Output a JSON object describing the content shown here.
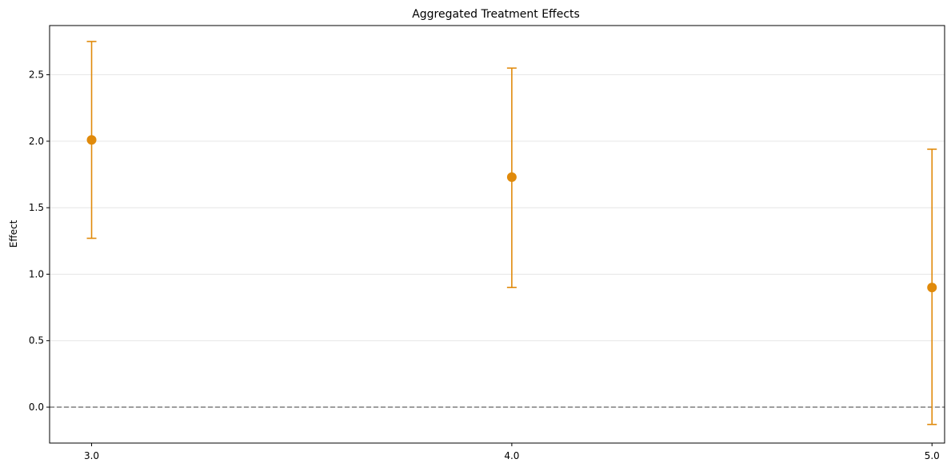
{
  "chart_data": {
    "type": "scatter",
    "title": "Aggregated Treatment Effects",
    "xlabel": "",
    "ylabel": "Effect",
    "x_ticks": [
      "3.0",
      "4.0",
      "5.0"
    ],
    "y_ticks": [
      "0.0",
      "0.5",
      "1.0",
      "1.5",
      "2.0",
      "2.5"
    ],
    "xlim": [
      2.9,
      5.03
    ],
    "ylim": [
      -0.27,
      2.87
    ],
    "grid": "y-major",
    "reference_line": {
      "y": 0.0,
      "style": "dashed",
      "color": "#7f7f7f"
    },
    "series": [
      {
        "color": "#e08a0b",
        "points": [
          {
            "x": 3.0,
            "y": 2.01,
            "lower": 1.27,
            "upper": 2.75
          },
          {
            "x": 4.0,
            "y": 1.73,
            "lower": 0.9,
            "upper": 2.55
          },
          {
            "x": 5.0,
            "y": 0.9,
            "lower": -0.13,
            "upper": 1.94
          }
        ]
      }
    ]
  }
}
